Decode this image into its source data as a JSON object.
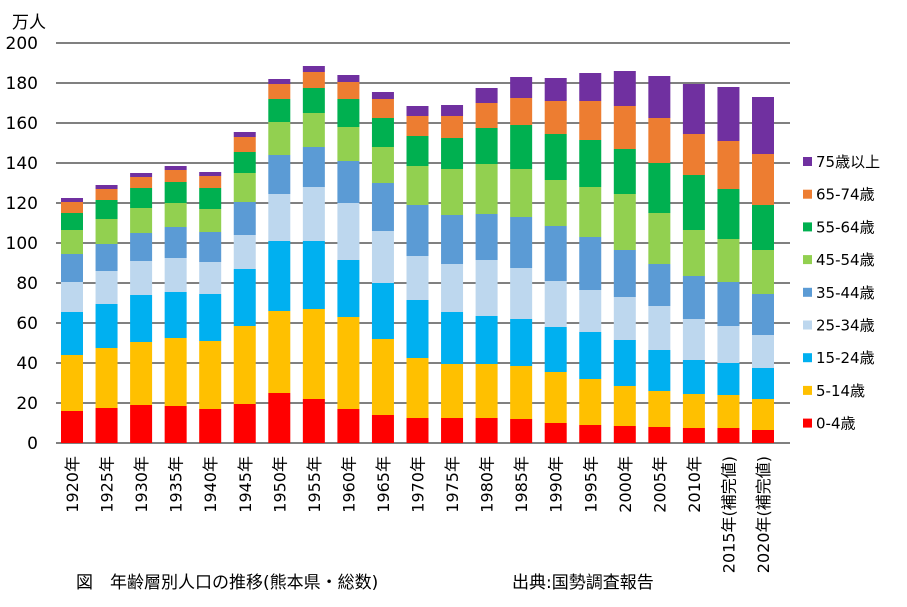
{
  "chart_data": {
    "type": "bar",
    "stacked": true,
    "unit_label": "万人",
    "caption": "図　年齢層別人口の推移(熊本県・総数)",
    "source": "出典:国勢調査報告",
    "categories": [
      "1920年",
      "1925年",
      "1930年",
      "1935年",
      "1940年",
      "1945年",
      "1950年",
      "1955年",
      "1960年",
      "1965年",
      "1970年",
      "1975年",
      "1980年",
      "1985年",
      "1990年",
      "1995年",
      "2000年",
      "2005年",
      "2010年",
      "2015年(補完値)",
      "2020年(補完値)"
    ],
    "ylim": [
      0,
      200
    ],
    "yticks": [
      0,
      20,
      40,
      60,
      80,
      100,
      120,
      140,
      160,
      180,
      200
    ],
    "grid": true,
    "legend_position": "right",
    "series": [
      {
        "name": "0-4歳",
        "color": "#ff0000",
        "values": [
          16,
          17.5,
          19,
          18.5,
          17,
          19.5,
          25,
          22,
          17,
          14,
          12.5,
          12.5,
          12.5,
          12,
          10,
          9,
          8.5,
          8,
          7.5,
          7.5,
          6.5
        ]
      },
      {
        "name": "5-14歳",
        "color": "#ffc000",
        "values": [
          28,
          30,
          31.5,
          34,
          34,
          39,
          41,
          45,
          46,
          38,
          30,
          27,
          27,
          26.5,
          25.5,
          23,
          20,
          18,
          17,
          16.5,
          15.5
        ]
      },
      {
        "name": "15-24歳",
        "color": "#00b0f0",
        "values": [
          21.5,
          22,
          23.5,
          23,
          23.5,
          28.5,
          35,
          34,
          28.5,
          28,
          29,
          26,
          24,
          23.5,
          22.5,
          23.5,
          23,
          20.5,
          17,
          16,
          15.5
        ]
      },
      {
        "name": "25-34歳",
        "color": "#bdd7ee",
        "values": [
          15,
          16.5,
          17,
          17,
          16,
          17,
          23.5,
          27,
          28.5,
          26,
          22,
          24,
          28,
          25.5,
          23,
          21,
          21.5,
          22,
          20.5,
          18.5,
          16.5
        ]
      },
      {
        "name": "35-44歳",
        "color": "#5b9bd5",
        "values": [
          14,
          13.5,
          14,
          15.5,
          15,
          16.5,
          19.5,
          20,
          21,
          24,
          25.5,
          24.5,
          23,
          25.5,
          27.5,
          26.5,
          23.5,
          21,
          21.5,
          22,
          20.5
        ]
      },
      {
        "name": "45-54歳",
        "color": "#92d050",
        "values": [
          12,
          12.5,
          12.5,
          12,
          11.5,
          14.5,
          16.5,
          17,
          17,
          18,
          19.5,
          23,
          25,
          24,
          23,
          25,
          28,
          25.5,
          23,
          21.5,
          22
        ]
      },
      {
        "name": "55-64歳",
        "color": "#00b050",
        "values": [
          8.5,
          9.5,
          10,
          10.5,
          10.5,
          10.5,
          11.5,
          12.5,
          14,
          14.5,
          15,
          15.5,
          18,
          22,
          23,
          23.5,
          22.5,
          25,
          27.5,
          25,
          22.5
        ]
      },
      {
        "name": "65-74歳",
        "color": "#ed7d31",
        "values": [
          5.5,
          5.5,
          5.5,
          6,
          6,
          7.5,
          7.5,
          8,
          8.5,
          9.5,
          10,
          11,
          12.5,
          13.5,
          16.5,
          19.5,
          21.5,
          22.5,
          20.5,
          24,
          25.5
        ]
      },
      {
        "name": "75歳以上",
        "color": "#7030a0",
        "values": [
          2,
          2,
          2,
          2,
          2,
          2.5,
          2.5,
          3,
          3.5,
          3.5,
          5,
          5.5,
          7.5,
          10.5,
          11.5,
          14,
          17.5,
          21,
          25,
          27,
          28.5
        ]
      }
    ]
  }
}
